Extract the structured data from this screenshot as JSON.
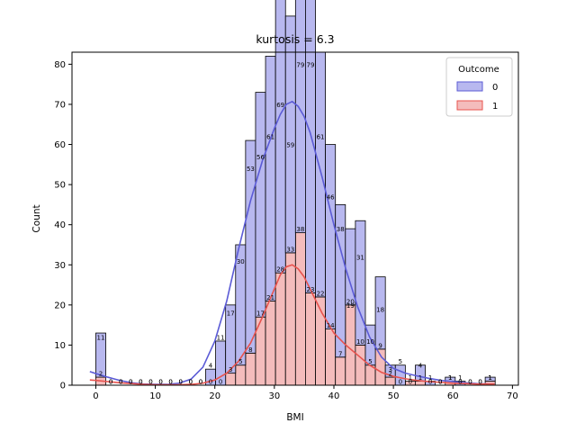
{
  "chart_data": {
    "type": "bar",
    "title": "kurtosis = 6.3",
    "xlabel": "BMI",
    "ylabel": "Count",
    "xlim": [
      -4,
      71
    ],
    "ylim": [
      0,
      83
    ],
    "xticks": [
      0,
      10,
      20,
      30,
      40,
      50,
      60,
      70
    ],
    "yticks": [
      0,
      10,
      20,
      30,
      40,
      50,
      60,
      70,
      80
    ],
    "grid": false,
    "legend": {
      "title": "Outcome",
      "placement": "top-right"
    },
    "bin_edges": [
      0.0,
      1.6775,
      3.355,
      5.0325,
      6.71,
      8.3875,
      10.065,
      11.7425,
      13.42,
      15.0975,
      16.775,
      18.4525,
      20.13,
      21.8075,
      23.485,
      25.1625,
      26.84,
      28.5175,
      30.195,
      31.8725,
      33.55,
      35.2275,
      36.905,
      38.5825,
      40.26,
      41.9375,
      43.615,
      45.2925,
      46.97,
      48.6475,
      50.325,
      52.0025,
      53.68,
      55.3575,
      57.035,
      58.7125,
      60.39,
      62.0675,
      63.745,
      65.4225,
      67.1
    ],
    "series": [
      {
        "name": "0",
        "color": "#5b5bd6",
        "fill": "#b8b8ef",
        "values": [
          11,
          0,
          0,
          0,
          0,
          0,
          0,
          0,
          0,
          0,
          0,
          4,
          11,
          17,
          30,
          53,
          56,
          61,
          69,
          59,
          79,
          79,
          61,
          46,
          38,
          19,
          31,
          10,
          18,
          3,
          5,
          0,
          4,
          1,
          0,
          1,
          1,
          0,
          0,
          1
        ],
        "kde": [
          [
            -1,
            3.4
          ],
          [
            0,
            2.9
          ],
          [
            2,
            2.0
          ],
          [
            4,
            1.2
          ],
          [
            6,
            0.6
          ],
          [
            8,
            0.3
          ],
          [
            10,
            0.2
          ],
          [
            12,
            0.2
          ],
          [
            14,
            0.5
          ],
          [
            16,
            1.5
          ],
          [
            18,
            4.5
          ],
          [
            20,
            11
          ],
          [
            22,
            21
          ],
          [
            24,
            34
          ],
          [
            26,
            46
          ],
          [
            28,
            56
          ],
          [
            30,
            64
          ],
          [
            31,
            67.5
          ],
          [
            32,
            70
          ],
          [
            33,
            70.7
          ],
          [
            34,
            69.5
          ],
          [
            35,
            67
          ],
          [
            36,
            63
          ],
          [
            38,
            52
          ],
          [
            40,
            40
          ],
          [
            42,
            29
          ],
          [
            44,
            19.5
          ],
          [
            46,
            12
          ],
          [
            48,
            7
          ],
          [
            50,
            4.2
          ],
          [
            52,
            3.0
          ],
          [
            54,
            2.3
          ],
          [
            56,
            1.7
          ],
          [
            58,
            1.2
          ],
          [
            60,
            0.9
          ],
          [
            62,
            0.6
          ],
          [
            64,
            0.4
          ],
          [
            66,
            0.3
          ],
          [
            67,
            0.3
          ]
        ]
      },
      {
        "name": "1",
        "color": "#e8534e",
        "fill": "#f4bcbc",
        "values": [
          2,
          0,
          0,
          0,
          0,
          0,
          0,
          0,
          0,
          0,
          0,
          0,
          0,
          3,
          5,
          8,
          17,
          21,
          28,
          33,
          38,
          23,
          22,
          14,
          7,
          20,
          10,
          5,
          9,
          2,
          0,
          1,
          1,
          0,
          0,
          1,
          0,
          0,
          0,
          1
        ],
        "kde": [
          [
            -1,
            1.3
          ],
          [
            0,
            1.2
          ],
          [
            2,
            0.9
          ],
          [
            4,
            0.6
          ],
          [
            6,
            0.4
          ],
          [
            8,
            0.2
          ],
          [
            10,
            0.1
          ],
          [
            12,
            0.1
          ],
          [
            14,
            0.1
          ],
          [
            16,
            0.2
          ],
          [
            18,
            0.5
          ],
          [
            20,
            1.3
          ],
          [
            22,
            3
          ],
          [
            24,
            6
          ],
          [
            26,
            10.5
          ],
          [
            28,
            17
          ],
          [
            30,
            24
          ],
          [
            31,
            27.5
          ],
          [
            32,
            29.5
          ],
          [
            33,
            30
          ],
          [
            34,
            29
          ],
          [
            35,
            27
          ],
          [
            36,
            24
          ],
          [
            38,
            18
          ],
          [
            40,
            13
          ],
          [
            42,
            10
          ],
          [
            44,
            7.5
          ],
          [
            46,
            5
          ],
          [
            48,
            3.2
          ],
          [
            50,
            2.2
          ],
          [
            52,
            1.6
          ],
          [
            54,
            1.2
          ],
          [
            56,
            0.9
          ],
          [
            58,
            0.7
          ],
          [
            60,
            0.5
          ],
          [
            62,
            0.4
          ],
          [
            64,
            0.3
          ],
          [
            66,
            0.3
          ],
          [
            67,
            0.3
          ]
        ]
      }
    ]
  }
}
